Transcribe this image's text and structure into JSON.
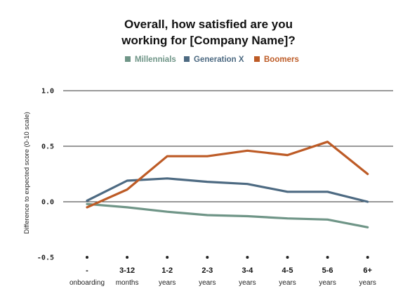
{
  "chart_data": {
    "type": "line",
    "title_lines": [
      "Overall, how satisfied are you",
      "working for [Company Name]?"
    ],
    "ylabel": "Difference to expected score (0-10 scale)",
    "ylim": [
      -0.5,
      1.0
    ],
    "yticks": [
      1.0,
      0.5,
      0.0,
      -0.5
    ],
    "ytick_labels": [
      "1.0",
      "0.5",
      "0.0",
      "-0.5"
    ],
    "categories": [
      {
        "main": "-",
        "sub": "onboarding"
      },
      {
        "main": "3-12",
        "sub": "months"
      },
      {
        "main": "1-2",
        "sub": "years"
      },
      {
        "main": "2-3",
        "sub": "years"
      },
      {
        "main": "3-4",
        "sub": "years"
      },
      {
        "main": "4-5",
        "sub": "years"
      },
      {
        "main": "5-6",
        "sub": "years"
      },
      {
        "main": "6+",
        "sub": "years"
      }
    ],
    "grid": true,
    "legend_position": "top-center",
    "series": [
      {
        "name": "Millennials",
        "color": "#6f9587",
        "values": [
          -0.02,
          -0.05,
          -0.09,
          -0.12,
          -0.13,
          -0.15,
          -0.16,
          -0.23
        ]
      },
      {
        "name": "Generation X",
        "color": "#4d6a82",
        "values": [
          0.01,
          0.19,
          0.21,
          0.18,
          0.16,
          0.09,
          0.09,
          0.0
        ]
      },
      {
        "name": "Boomers",
        "color": "#bd5b26",
        "values": [
          -0.05,
          0.11,
          0.41,
          0.41,
          0.46,
          0.42,
          0.54,
          0.25
        ]
      }
    ]
  }
}
